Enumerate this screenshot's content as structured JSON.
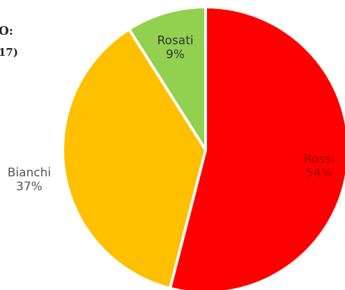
{
  "chart_data": {
    "type": "pie",
    "title": "O:",
    "subtitle": "17)",
    "categories": [
      "Rossi",
      "Bianchi",
      "Rosati"
    ],
    "values": [
      54,
      37,
      9
    ],
    "value_labels": [
      "54%",
      "37%",
      "9%"
    ],
    "colors": [
      "#ff0000",
      "#ffc000",
      "#92d050"
    ]
  }
}
